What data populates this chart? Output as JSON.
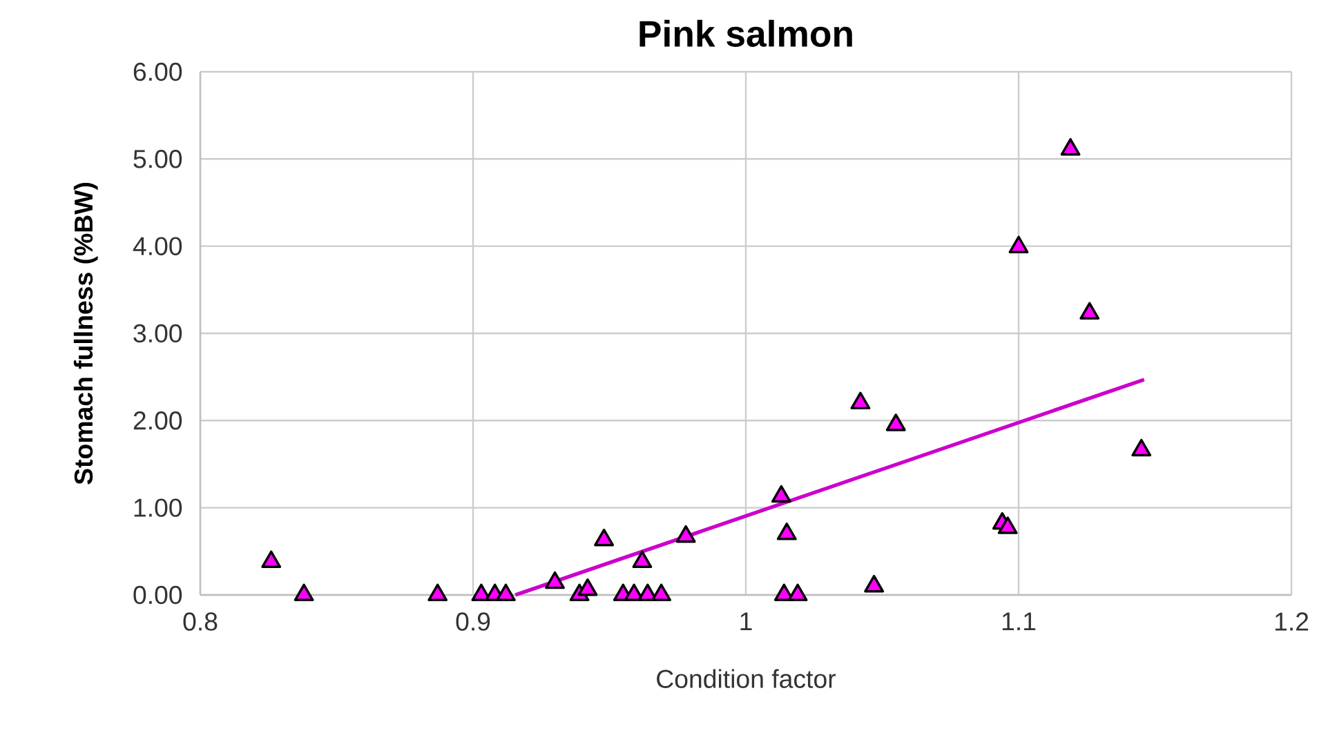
{
  "chart_data": {
    "type": "scatter",
    "title": "Pink salmon",
    "xlabel": "Condition factor",
    "ylabel": "Stomach fullness (%BW)",
    "xlim": [
      0.8,
      1.2
    ],
    "xticks": [
      0.8,
      0.9,
      1,
      1.1,
      1.2
    ],
    "ylim": [
      0,
      6
    ],
    "yticks": [
      {
        "value": 0,
        "label": "0.00"
      },
      {
        "value": 1,
        "label": "1.00"
      },
      {
        "value": 2,
        "label": "2.00"
      },
      {
        "value": 3,
        "label": "3.00"
      },
      {
        "value": 4,
        "label": "4.00"
      },
      {
        "value": 5,
        "label": "5.00"
      },
      {
        "value": 6,
        "label": "6.00"
      }
    ],
    "grid": true,
    "series": [
      {
        "color": "#ff00ff",
        "marker": "triangle",
        "x": [
          0.826,
          0.838,
          0.887,
          0.903,
          0.908,
          0.912,
          0.93,
          0.939,
          0.942,
          0.948,
          0.955,
          0.959,
          0.962,
          0.964,
          0.969,
          0.978,
          1.013,
          1.015,
          1.014,
          1.019,
          1.042,
          1.055,
          1.047,
          1.094,
          1.096,
          1.1,
          1.119,
          1.126,
          1.145
        ],
        "values": [
          0.38,
          0,
          0,
          0,
          0,
          0,
          0.14,
          0,
          0.06,
          0.63,
          0,
          0,
          0.38,
          0,
          0,
          0.67,
          1.13,
          0.7,
          0,
          0,
          2.2,
          1.95,
          0.1,
          0.82,
          0.77,
          3.99,
          5.11,
          3.23,
          1.66
        ]
      },
      {
        "type": "line",
        "color": "#cc00cc",
        "marker": "none",
        "line_style": "solid",
        "x": [
          0.9155,
          1.146
        ],
        "values": [
          0,
          2.47
        ]
      }
    ]
  }
}
